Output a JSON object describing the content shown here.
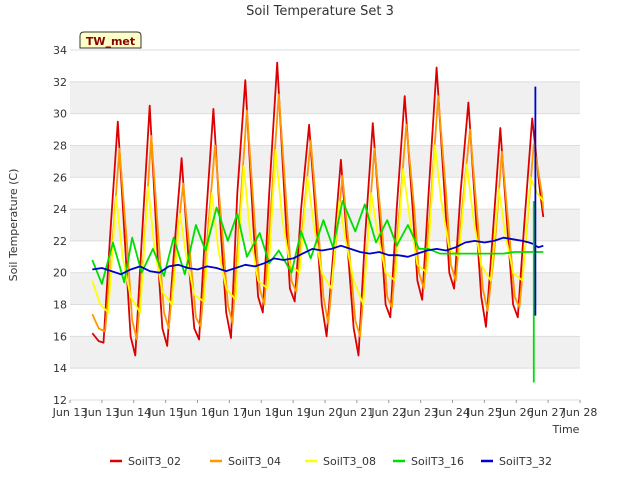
{
  "chart_data": {
    "type": "line",
    "title": "Soil Temperature Set 3",
    "xlabel": "Time",
    "ylabel": "Soil Temperature (C)",
    "badge": "TW_met",
    "xlim": [
      12.0,
      28.0
    ],
    "ylim": [
      12,
      34
    ],
    "grid": true,
    "legend_position": "bottom",
    "x_ticks": [
      {
        "value": 12,
        "label": "Jun 13"
      },
      {
        "value": 13,
        "label": "Jun 13"
      },
      {
        "value": 14,
        "label": "Jun 14"
      },
      {
        "value": 15,
        "label": "Jun 15"
      },
      {
        "value": 16,
        "label": "Jun 16"
      },
      {
        "value": 17,
        "label": "Jun 17"
      },
      {
        "value": 18,
        "label": "Jun 18"
      },
      {
        "value": 19,
        "label": "Jun 19"
      },
      {
        "value": 20,
        "label": "Jun 20"
      },
      {
        "value": 21,
        "label": "Jun 21"
      },
      {
        "value": 22,
        "label": "Jun 22"
      },
      {
        "value": 23,
        "label": "Jun 23"
      },
      {
        "value": 24,
        "label": "Jun 24"
      },
      {
        "value": 25,
        "label": "Jun 25"
      },
      {
        "value": 26,
        "label": "Jun 26"
      },
      {
        "value": 27,
        "label": "Jun 27"
      },
      {
        "value": 28,
        "label": "Jun 28"
      }
    ],
    "y_ticks": [
      12,
      14,
      16,
      18,
      20,
      22,
      24,
      26,
      28,
      30,
      32,
      34
    ],
    "series": [
      {
        "name": "SoilT3_02",
        "color": "#dd0000",
        "x": [
          12.7,
          12.9,
          13.05,
          13.25,
          13.5,
          13.75,
          13.9,
          14.05,
          14.25,
          14.5,
          14.75,
          14.9,
          15.05,
          15.25,
          15.5,
          15.75,
          15.9,
          16.05,
          16.25,
          16.5,
          16.75,
          16.9,
          17.05,
          17.25,
          17.5,
          17.75,
          17.9,
          18.05,
          18.25,
          18.5,
          18.75,
          18.9,
          19.05,
          19.25,
          19.5,
          19.75,
          19.9,
          20.05,
          20.25,
          20.5,
          20.75,
          20.9,
          21.05,
          21.25,
          21.5,
          21.75,
          21.9,
          22.05,
          22.25,
          22.5,
          22.75,
          22.9,
          23.05,
          23.25,
          23.5,
          23.75,
          23.9,
          24.05,
          24.25,
          24.5,
          24.75,
          24.9,
          25.05,
          25.25,
          25.5,
          25.75,
          25.9,
          26.05,
          26.25,
          26.5,
          26.75,
          26.85
        ],
        "y": [
          16.2,
          15.7,
          15.6,
          22.0,
          29.5,
          21.0,
          16.0,
          14.8,
          22.0,
          30.5,
          21.0,
          16.5,
          15.4,
          21.0,
          27.2,
          20.0,
          16.5,
          15.8,
          23.0,
          30.3,
          22.0,
          17.5,
          15.9,
          25.0,
          32.1,
          23.0,
          18.5,
          17.5,
          25.0,
          33.2,
          24.0,
          19.0,
          18.2,
          24.0,
          29.3,
          22.5,
          18.0,
          16.0,
          21.0,
          27.1,
          20.5,
          16.5,
          14.8,
          22.0,
          29.4,
          22.5,
          18.0,
          17.2,
          24.0,
          31.1,
          24.0,
          19.5,
          18.3,
          25.0,
          32.9,
          25.0,
          20.0,
          19.0,
          25.0,
          30.7,
          23.0,
          18.5,
          16.6,
          22.0,
          29.1,
          22.0,
          18.0,
          17.2,
          23.0,
          29.7,
          25.0,
          23.5
        ]
      },
      {
        "name": "SoilT3_04",
        "color": "#ff9900",
        "x": [
          12.7,
          12.9,
          13.1,
          13.3,
          13.55,
          13.8,
          13.95,
          14.1,
          14.3,
          14.55,
          14.8,
          14.95,
          15.1,
          15.3,
          15.55,
          15.8,
          15.95,
          16.1,
          16.3,
          16.55,
          16.8,
          16.95,
          17.1,
          17.3,
          17.55,
          17.8,
          17.95,
          18.1,
          18.3,
          18.55,
          18.8,
          18.95,
          19.1,
          19.3,
          19.55,
          19.8,
          19.95,
          20.1,
          20.3,
          20.55,
          20.8,
          20.95,
          21.1,
          21.3,
          21.55,
          21.8,
          21.95,
          22.1,
          22.3,
          22.55,
          22.8,
          22.95,
          23.1,
          23.3,
          23.55,
          23.8,
          23.95,
          24.1,
          24.3,
          24.55,
          24.8,
          24.95,
          25.1,
          25.3,
          25.55,
          25.8,
          25.95,
          26.1,
          26.3,
          26.55,
          26.8,
          26.85
        ],
        "y": [
          17.4,
          16.5,
          16.3,
          21.0,
          27.8,
          21.5,
          17.0,
          15.8,
          21.0,
          28.6,
          21.5,
          17.5,
          16.5,
          21.0,
          25.6,
          20.5,
          17.2,
          16.6,
          22.0,
          28.0,
          22.0,
          18.0,
          16.8,
          23.0,
          30.2,
          23.0,
          19.0,
          18.0,
          24.0,
          31.2,
          24.0,
          19.5,
          18.8,
          23.0,
          28.3,
          22.5,
          18.5,
          16.8,
          21.0,
          26.1,
          20.5,
          17.0,
          16.0,
          21.0,
          27.8,
          22.5,
          18.5,
          17.8,
          23.0,
          29.3,
          24.0,
          20.0,
          19.0,
          24.0,
          31.1,
          25.0,
          20.5,
          19.5,
          24.0,
          29.0,
          23.0,
          19.0,
          17.6,
          21.0,
          27.6,
          22.0,
          18.5,
          17.8,
          22.0,
          28.1,
          25.0,
          24.0
        ]
      },
      {
        "name": "SoilT3_08",
        "color": "#ffff00",
        "x": [
          12.7,
          12.95,
          13.2,
          13.45,
          13.65,
          13.9,
          14.2,
          14.45,
          14.65,
          14.9,
          15.2,
          15.45,
          15.65,
          15.9,
          16.2,
          16.45,
          16.65,
          16.9,
          17.2,
          17.45,
          17.65,
          17.9,
          18.2,
          18.45,
          18.65,
          18.9,
          19.2,
          19.45,
          19.65,
          19.9,
          20.2,
          20.45,
          20.65,
          20.9,
          21.2,
          21.45,
          21.65,
          21.9,
          22.2,
          22.45,
          22.65,
          22.9,
          23.2,
          23.45,
          23.65,
          23.9,
          24.2,
          24.45,
          24.65,
          24.9,
          25.2,
          25.45,
          25.65,
          25.9,
          26.2,
          26.45,
          26.65,
          26.85
        ],
        "y": [
          19.5,
          18.0,
          17.5,
          24.8,
          21.0,
          18.5,
          17.5,
          25.4,
          21.5,
          18.8,
          18.0,
          23.7,
          21.0,
          18.6,
          18.2,
          25.0,
          21.5,
          19.0,
          18.3,
          26.7,
          22.5,
          19.5,
          19.0,
          27.7,
          23.5,
          20.5,
          20.0,
          26.0,
          23.0,
          20.0,
          19.0,
          24.5,
          22.0,
          19.5,
          18.0,
          25.0,
          22.5,
          20.0,
          19.5,
          26.5,
          23.5,
          20.5,
          20.0,
          28.0,
          24.5,
          21.5,
          21.0,
          26.8,
          23.5,
          20.5,
          19.5,
          25.3,
          22.5,
          20.0,
          19.5,
          26.0,
          25.0,
          24.5
        ]
      },
      {
        "name": "SoilT3_16",
        "color": "#00dd00",
        "x": [
          12.7,
          13.0,
          13.35,
          13.7,
          13.95,
          14.25,
          14.6,
          14.95,
          15.25,
          15.6,
          15.95,
          16.25,
          16.6,
          16.95,
          17.25,
          17.55,
          17.95,
          18.25,
          18.55,
          18.95,
          19.25,
          19.55,
          19.95,
          20.25,
          20.55,
          20.95,
          21.25,
          21.6,
          21.95,
          22.25,
          22.6,
          22.95,
          23.25,
          23.6,
          23.95,
          24.25,
          24.6,
          24.95,
          25.25,
          25.6,
          25.95,
          26.2,
          26.35,
          26.42,
          26.45,
          26.5,
          26.6,
          26.75,
          26.85
        ],
        "y": [
          20.8,
          19.3,
          21.9,
          19.4,
          22.2,
          20.0,
          21.5,
          19.8,
          22.2,
          19.9,
          23.0,
          21.4,
          24.1,
          22.0,
          23.7,
          21.0,
          22.5,
          20.6,
          21.4,
          20.0,
          22.6,
          20.9,
          23.3,
          21.6,
          24.5,
          22.6,
          24.3,
          21.9,
          23.3,
          21.7,
          23.0,
          21.5,
          21.5,
          21.2,
          21.2,
          21.2,
          21.2,
          21.2,
          21.2,
          21.2,
          21.3,
          21.3,
          21.3,
          21.3,
          21.3,
          21.3,
          21.3,
          21.3,
          21.3
        ]
      },
      {
        "name": "SoilT3_32",
        "color": "#0000cc",
        "x": [
          12.7,
          13.0,
          13.3,
          13.6,
          13.9,
          14.2,
          14.5,
          14.8,
          15.1,
          15.4,
          15.7,
          16.0,
          16.3,
          16.6,
          16.9,
          17.2,
          17.5,
          17.8,
          18.1,
          18.4,
          18.7,
          19.0,
          19.3,
          19.6,
          19.9,
          20.2,
          20.5,
          20.8,
          21.1,
          21.4,
          21.7,
          22.0,
          22.3,
          22.6,
          22.9,
          23.2,
          23.5,
          23.8,
          24.1,
          24.4,
          24.7,
          25.0,
          25.3,
          25.6,
          25.9,
          26.2,
          26.4,
          26.55,
          26.6,
          26.7,
          26.85
        ],
        "y": [
          20.2,
          20.3,
          20.1,
          19.9,
          20.2,
          20.4,
          20.1,
          20.0,
          20.4,
          20.5,
          20.3,
          20.2,
          20.4,
          20.3,
          20.1,
          20.3,
          20.5,
          20.4,
          20.6,
          20.9,
          20.8,
          20.9,
          21.2,
          21.5,
          21.4,
          21.5,
          21.7,
          21.5,
          21.3,
          21.2,
          21.3,
          21.1,
          21.1,
          21.0,
          21.2,
          21.4,
          21.5,
          21.4,
          21.6,
          21.9,
          22.0,
          21.9,
          22.0,
          22.2,
          22.1,
          22.0,
          21.9,
          21.8,
          21.7,
          21.6,
          21.7
        ]
      }
    ]
  }
}
